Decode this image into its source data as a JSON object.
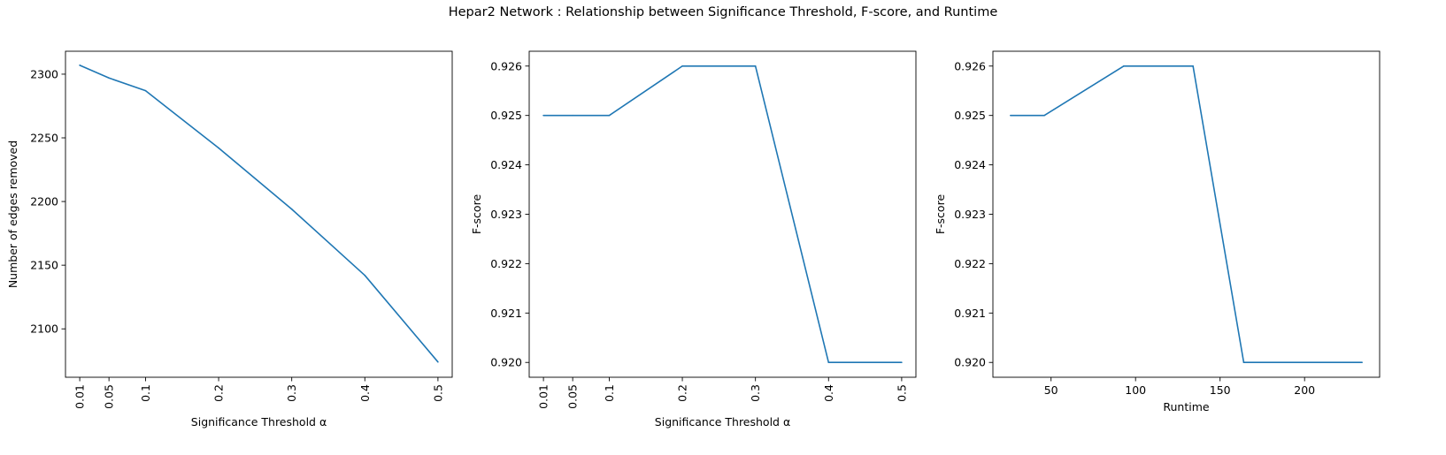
{
  "suptitle": "Hepar2 Network : Relationship between Significance Threshold, F-score, and Runtime",
  "line_color": "#1f77b4",
  "chart_data": [
    {
      "type": "line",
      "title": "",
      "xlabel": "Significance Threshold α",
      "ylabel": "Number of edges removed",
      "x": [
        0.01,
        0.05,
        0.1,
        0.2,
        0.3,
        0.4,
        0.5
      ],
      "series": [
        {
          "values": [
            2307,
            2297,
            2287,
            2242,
            2194,
            2142,
            2074
          ]
        }
      ],
      "xlim": [
        -0.0095,
        0.5195
      ],
      "ylim": [
        2062,
        2318
      ],
      "xticks": [
        0.01,
        0.05,
        0.1,
        0.2,
        0.3,
        0.4,
        0.5
      ],
      "xtick_labels": [
        "0.01",
        "0.05",
        "0.1",
        "0.2",
        "0.3",
        "0.4",
        "0.5"
      ],
      "xtick_rotation": 90,
      "yticks": [
        2100,
        2150,
        2200,
        2250,
        2300
      ],
      "ytick_labels": [
        "2100",
        "2150",
        "2200",
        "2250",
        "2300"
      ],
      "grid": false
    },
    {
      "type": "line",
      "title": "",
      "xlabel": "Significance Threshold α",
      "ylabel": "F-score",
      "x": [
        0.01,
        0.05,
        0.1,
        0.2,
        0.3,
        0.4,
        0.5
      ],
      "series": [
        {
          "values": [
            0.925,
            0.925,
            0.925,
            0.926,
            0.926,
            0.92,
            0.92
          ]
        }
      ],
      "xlim": [
        -0.0095,
        0.5195
      ],
      "ylim": [
        0.9197,
        0.9263
      ],
      "xticks": [
        0.01,
        0.05,
        0.1,
        0.2,
        0.3,
        0.4,
        0.5
      ],
      "xtick_labels": [
        "0.01",
        "0.05",
        "0.1",
        "0.2",
        "0.3",
        "0.4",
        "0.5"
      ],
      "xtick_rotation": 90,
      "yticks": [
        0.92,
        0.921,
        0.922,
        0.923,
        0.924,
        0.925,
        0.926
      ],
      "ytick_labels": [
        "0.920",
        "0.921",
        "0.922",
        "0.923",
        "0.924",
        "0.925",
        "0.926"
      ],
      "grid": false
    },
    {
      "type": "line",
      "title": "",
      "xlabel": "Runtime",
      "ylabel": "F-score",
      "x": [
        26,
        46,
        93,
        134,
        164,
        234
      ],
      "series": [
        {
          "values": [
            0.925,
            0.925,
            0.926,
            0.926,
            0.92,
            0.92
          ]
        }
      ],
      "xlim": [
        15.6,
        244.4
      ],
      "ylim": [
        0.9197,
        0.9263
      ],
      "xticks": [
        50,
        100,
        150,
        200
      ],
      "xtick_labels": [
        "50",
        "100",
        "150",
        "200"
      ],
      "xtick_rotation": 0,
      "yticks": [
        0.92,
        0.921,
        0.922,
        0.923,
        0.924,
        0.925,
        0.926
      ],
      "ytick_labels": [
        "0.920",
        "0.921",
        "0.922",
        "0.923",
        "0.924",
        "0.925",
        "0.926"
      ],
      "grid": false
    }
  ]
}
